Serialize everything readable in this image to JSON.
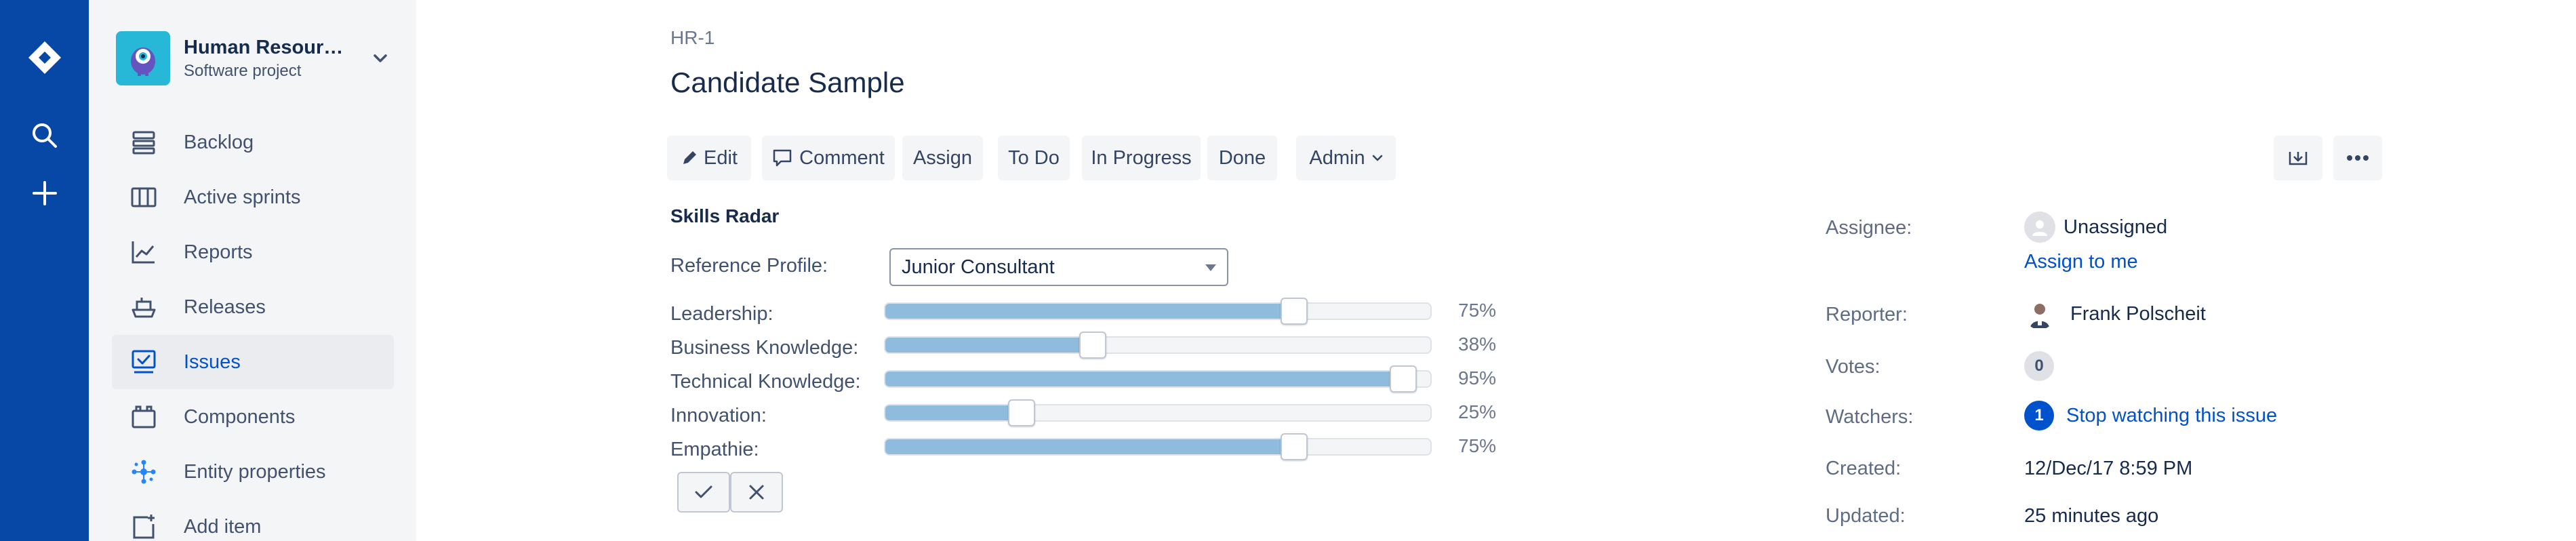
{
  "project": {
    "name": "Human Resources",
    "type": "Software project"
  },
  "sidebar": {
    "items": [
      {
        "label": "Backlog",
        "icon": "backlog-icon"
      },
      {
        "label": "Active sprints",
        "icon": "board-icon"
      },
      {
        "label": "Reports",
        "icon": "reports-icon"
      },
      {
        "label": "Releases",
        "icon": "releases-icon"
      },
      {
        "label": "Issues",
        "icon": "issues-icon",
        "active": true
      },
      {
        "label": "Components",
        "icon": "components-icon"
      },
      {
        "label": "Entity properties",
        "icon": "entity-properties-icon"
      },
      {
        "label": "Add item",
        "icon": "add-item-icon"
      }
    ]
  },
  "issue": {
    "key": "HR-1",
    "title": "Candidate Sample"
  },
  "toolbar": {
    "edit": "Edit",
    "comment": "Comment",
    "assign": "Assign",
    "todo": "To Do",
    "in_progress": "In Progress",
    "done": "Done",
    "admin": "Admin"
  },
  "skills": {
    "title": "Skills Radar",
    "reference_label": "Reference Profile:",
    "reference_value": "Junior Consultant",
    "items": [
      {
        "label": "Leadership:",
        "value": 75,
        "pct": "75%"
      },
      {
        "label": "Business Knowledge:",
        "value": 38,
        "pct": "38%"
      },
      {
        "label": "Technical Knowledge:",
        "value": 95,
        "pct": "95%"
      },
      {
        "label": "Innovation:",
        "value": 25,
        "pct": "25%"
      },
      {
        "label": "Empathie:",
        "value": 75,
        "pct": "75%"
      }
    ]
  },
  "people": {
    "assignee_label": "Assignee:",
    "assignee_value": "Unassigned",
    "assign_to_me": "Assign to me",
    "reporter_label": "Reporter:",
    "reporter_value": "Frank Polscheit",
    "votes_label": "Votes:",
    "votes_count": "0",
    "watchers_label": "Watchers:",
    "watchers_count": "1",
    "stop_watching": "Stop watching this issue"
  },
  "dates": {
    "created_label": "Created:",
    "created_value": "12/Dec/17 8:59 PM",
    "updated_label": "Updated:",
    "updated_value": "25 minutes ago"
  },
  "colors": {
    "global_nav": "#0747a6",
    "sidebar_bg": "#f4f5f7",
    "link": "#0052cc",
    "slider_fill": "#8fbbdd"
  }
}
